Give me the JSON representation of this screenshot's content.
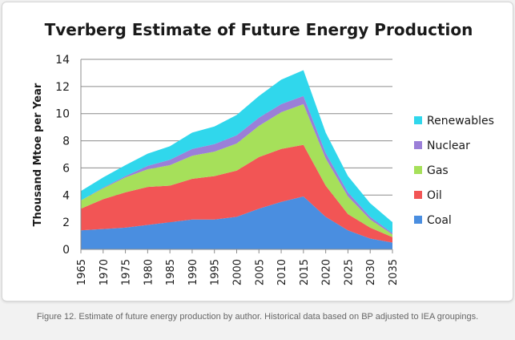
{
  "caption": "Figure 12. Estimate of future energy production by author. Historical data based on BP adjusted to IEA groupings.",
  "chart_data": {
    "type": "area",
    "stacked": true,
    "title": "Tverberg Estimate of Future Energy Production",
    "xlabel": "",
    "ylabel": "Thousand Mtoe per Year",
    "ylim": [
      0,
      14
    ],
    "yticks": [
      0,
      2,
      4,
      6,
      8,
      10,
      12,
      14
    ],
    "grid": true,
    "legend_position": "right",
    "x": [
      1965,
      1970,
      1975,
      1980,
      1985,
      1990,
      1995,
      2000,
      2005,
      2010,
      2015,
      2020,
      2025,
      2030,
      2035
    ],
    "x_tick_labels": [
      "1965",
      "1970",
      "1975",
      "1980",
      "1985",
      "1990",
      "1995",
      "2000",
      "2005",
      "2010",
      "2015",
      "2020",
      "2025",
      "2030",
      "2035"
    ],
    "series": [
      {
        "name": "Coal",
        "color": "#4a8ee0",
        "values": [
          1.4,
          1.5,
          1.6,
          1.8,
          2.0,
          2.2,
          2.2,
          2.4,
          3.0,
          3.5,
          3.9,
          2.4,
          1.4,
          0.8,
          0.5
        ]
      },
      {
        "name": "Oil",
        "color": "#f25555",
        "values": [
          1.6,
          2.2,
          2.6,
          2.8,
          2.7,
          3.0,
          3.2,
          3.4,
          3.8,
          3.9,
          3.8,
          2.3,
          1.2,
          0.8,
          0.4
        ]
      },
      {
        "name": "Gas",
        "color": "#a6e05a",
        "values": [
          0.6,
          0.8,
          1.1,
          1.3,
          1.5,
          1.7,
          1.8,
          2.0,
          2.3,
          2.7,
          3.0,
          2.0,
          1.3,
          0.6,
          0.2
        ]
      },
      {
        "name": "Nuclear",
        "color": "#9b7fd8",
        "values": [
          0.0,
          0.05,
          0.1,
          0.25,
          0.4,
          0.5,
          0.55,
          0.6,
          0.6,
          0.6,
          0.6,
          0.4,
          0.3,
          0.2,
          0.1
        ]
      },
      {
        "name": "Renewables",
        "color": "#30d7ec",
        "values": [
          0.7,
          0.75,
          0.8,
          0.9,
          1.0,
          1.2,
          1.3,
          1.5,
          1.6,
          1.8,
          1.9,
          1.5,
          1.2,
          1.0,
          0.8
        ]
      }
    ],
    "legend_order": [
      "Renewables",
      "Nuclear",
      "Gas",
      "Oil",
      "Coal"
    ]
  }
}
